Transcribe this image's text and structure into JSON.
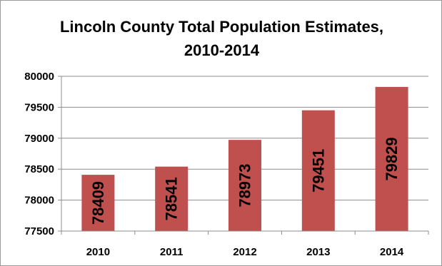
{
  "chart_data": {
    "type": "bar",
    "title_line1": "Lincoln County Total Population Estimates,",
    "title_line2": "2010-2014",
    "categories": [
      "2010",
      "2011",
      "2012",
      "2013",
      "2014"
    ],
    "values": [
      78409,
      78541,
      78973,
      79451,
      79829
    ],
    "data_labels": [
      "78409",
      "78541",
      "78973",
      "79451",
      "79829"
    ],
    "ylim": [
      77500,
      80000
    ],
    "y_ticks": [
      77500,
      78000,
      78500,
      79000,
      79500,
      80000
    ],
    "grid": true,
    "legend": "none",
    "bar_color": "#c0504d",
    "xlabel": "",
    "ylabel": ""
  }
}
